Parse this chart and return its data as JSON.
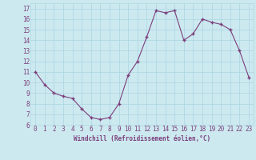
{
  "x": [
    0,
    1,
    2,
    3,
    4,
    5,
    6,
    7,
    8,
    9,
    10,
    11,
    12,
    13,
    14,
    15,
    16,
    17,
    18,
    19,
    20,
    21,
    22,
    23
  ],
  "y": [
    11.0,
    9.8,
    9.0,
    8.7,
    8.5,
    7.5,
    6.7,
    6.5,
    6.7,
    8.0,
    10.7,
    12.0,
    14.3,
    16.8,
    16.6,
    16.8,
    14.0,
    14.6,
    16.0,
    15.7,
    15.5,
    15.0,
    13.0,
    10.5
  ],
  "line_color": "#7b3f7b",
  "marker": "+",
  "marker_size": 3,
  "marker_linewidth": 1.0,
  "line_width": 0.8,
  "background_color": "#cce9f0",
  "grid_color": "#b0d8e4",
  "xlabel": "Windchill (Refroidissement éolien,°C)",
  "xlabel_color": "#7b3f7b",
  "xlabel_fontsize": 5.5,
  "tick_label_color": "#7b3f7b",
  "tick_fontsize": 5.5,
  "ylim": [
    6,
    17.5
  ],
  "yticks": [
    6,
    7,
    8,
    9,
    10,
    11,
    12,
    13,
    14,
    15,
    16,
    17
  ],
  "xticks": [
    0,
    1,
    2,
    3,
    4,
    5,
    6,
    7,
    8,
    9,
    10,
    11,
    12,
    13,
    14,
    15,
    16,
    17,
    18,
    19,
    20,
    21,
    22,
    23
  ],
  "xtick_labels": [
    "0",
    "1",
    "2",
    "3",
    "4",
    "5",
    "6",
    "7",
    "8",
    "9",
    "10",
    "11",
    "12",
    "13",
    "14",
    "15",
    "16",
    "17",
    "18",
    "19",
    "20",
    "21",
    "22",
    "23"
  ],
  "figsize": [
    3.2,
    2.0
  ],
  "dpi": 100
}
